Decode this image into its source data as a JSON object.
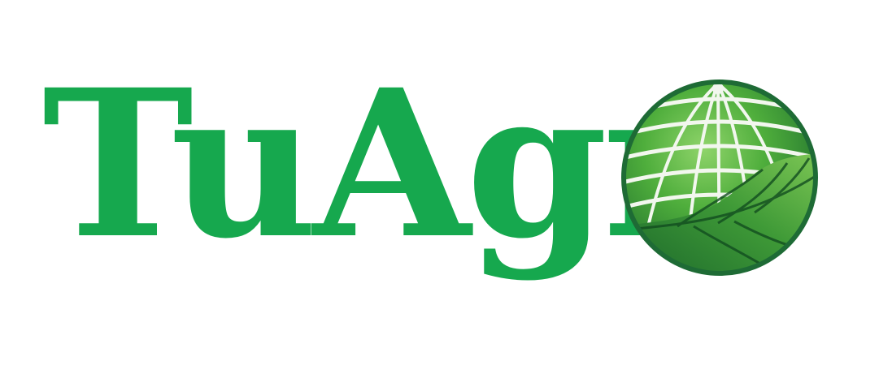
{
  "logo": {
    "wordmark": "TuAgr",
    "emblem_icon": "globe-leaf-icon",
    "colors": {
      "brand_green": "#16a84e",
      "globe_outline": "#1e6b35",
      "leaf_dark": "#1f6f30",
      "leaf_light": "#5cb843",
      "grid_lines": "#f2f7ee"
    }
  }
}
